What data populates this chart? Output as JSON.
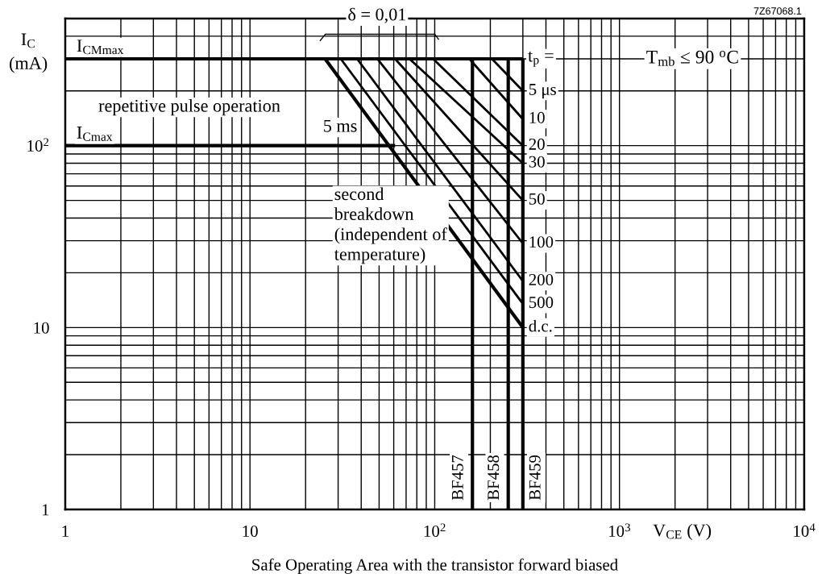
{
  "chart_data": {
    "type": "line",
    "title": "Safe Operating Area with the transistor forward biased",
    "xlabel": "V$_{CE}$ (V)",
    "ylabel": "I$_{C}$\n(mA)",
    "log": "xy",
    "xlim": [
      1,
      10000
    ],
    "ylim": [
      1,
      500
    ],
    "xticks": [
      1,
      10,
      {
        "value": 100,
        "label": "10$^{2}$"
      },
      {
        "value": 1000,
        "label": "10$^{3}$"
      },
      {
        "value": 10000,
        "label": "10$^{4}$"
      }
    ],
    "yticks": [
      1,
      10,
      {
        "value": 100,
        "label": "10$^{2}$"
      }
    ],
    "grid": true,
    "legend": false,
    "marker": "none",
    "line_style": "solid",
    "annotations": [
      "7Z67068.1",
      "δ = 0,01",
      "t$_{p}$ =",
      "T$_{mb}$ ≤ 90 $^{o}$C",
      "repetitive pulse operation",
      "5 ms",
      "second\nbreakdown\n(independent of\ntemperature)"
    ],
    "series": [
      {
        "name": "I$_{CMmax}$",
        "color": "#000000",
        "x": [
          1,
          300
        ],
        "values": [
          300,
          300
        ]
      },
      {
        "name": "I$_{Cmax}$",
        "color": "#000000",
        "x": [
          1,
          61
        ],
        "values": [
          100,
          100
        ]
      },
      {
        "name": "BF457",
        "color": "#000000",
        "x": [
          160,
          160
        ],
        "values": [
          1,
          300
        ]
      },
      {
        "name": "BF458",
        "color": "#000000",
        "x": [
          250,
          250
        ],
        "values": [
          1,
          300
        ]
      },
      {
        "name": "BF459",
        "color": "#000000",
        "x": [
          300,
          300
        ],
        "values": [
          1,
          300
        ]
      },
      {
        "name": "5 μs",
        "color": "#000000",
        "x": [
          204,
          300
        ],
        "values": [
          300,
          200
        ]
      },
      {
        "name": "10",
        "color": "#000000",
        "x": [
          154,
          300
        ],
        "values": [
          300,
          140
        ]
      },
      {
        "name": "20",
        "color": "#000000",
        "x": [
          98,
          300
        ],
        "values": [
          300,
          100
        ]
      },
      {
        "name": "30",
        "color": "#000000",
        "x": [
          73,
          300
        ],
        "values": [
          300,
          80
        ]
      },
      {
        "name": "50",
        "color": "#000000",
        "x": [
          61,
          300
        ],
        "values": [
          300,
          50
        ]
      },
      {
        "name": "100",
        "color": "#000000",
        "x": [
          49,
          300
        ],
        "values": [
          300,
          29
        ]
      },
      {
        "name": "200",
        "color": "#000000",
        "x": [
          38,
          300
        ],
        "values": [
          300,
          18
        ]
      },
      {
        "name": "500",
        "color": "#000000",
        "x": [
          31,
          300
        ],
        "values": [
          300,
          13.5
        ]
      },
      {
        "name": "d.c.",
        "color": "#000000",
        "x": [
          25.5,
          300
        ],
        "values": [
          300,
          10
        ]
      }
    ]
  }
}
